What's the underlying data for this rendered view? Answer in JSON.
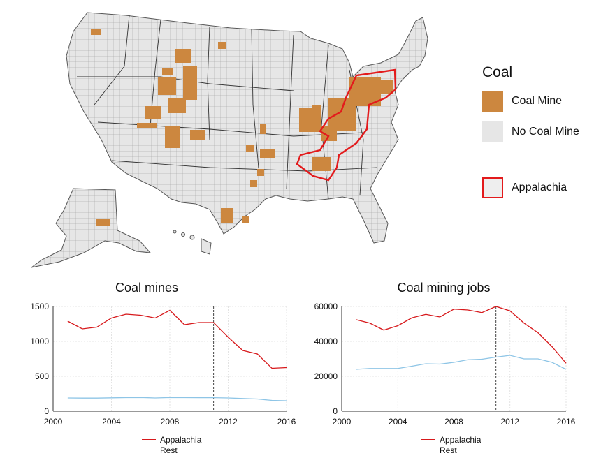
{
  "colors": {
    "coal_mine": "#cc873f",
    "no_coal_mine": "#e6e6e6",
    "appalachia_outline": "#e31a1c",
    "appalachia_line": "#d7191c",
    "rest_line": "#8ec5e6"
  },
  "map_legend": {
    "title": "Coal",
    "items": [
      {
        "label": "Coal Mine",
        "swatch": "coal-mine"
      },
      {
        "label": "No Coal Mine",
        "swatch": "no-coal-mine"
      },
      {
        "label": "Appalachia",
        "swatch": "appalachia"
      }
    ]
  },
  "chart_data": [
    {
      "type": "line",
      "title": "Coal mines",
      "x": [
        2001,
        2002,
        2003,
        2004,
        2005,
        2006,
        2007,
        2008,
        2009,
        2010,
        2011,
        2012,
        2013,
        2014,
        2015,
        2016
      ],
      "xticks": [
        2000,
        2004,
        2008,
        2012,
        2016
      ],
      "yticks": [
        0,
        500,
        1000,
        1500
      ],
      "xlim": [
        2000,
        2016
      ],
      "ylim": [
        0,
        1500
      ],
      "vline": 2011,
      "series": [
        {
          "name": "Appalachia",
          "values": [
            1290,
            1180,
            1205,
            1335,
            1390,
            1375,
            1335,
            1445,
            1240,
            1270,
            1270,
            1060,
            870,
            820,
            615,
            625
          ]
        },
        {
          "name": "Rest",
          "values": [
            190,
            188,
            188,
            192,
            195,
            197,
            190,
            196,
            195,
            194,
            194,
            190,
            182,
            175,
            155,
            150
          ]
        }
      ]
    },
    {
      "type": "line",
      "title": "Coal mining jobs",
      "x": [
        2001,
        2002,
        2003,
        2004,
        2005,
        2006,
        2007,
        2008,
        2009,
        2010,
        2011,
        2012,
        2013,
        2014,
        2015,
        2016
      ],
      "xticks": [
        2000,
        2004,
        2008,
        2012,
        2016
      ],
      "yticks": [
        0,
        20000,
        40000,
        60000
      ],
      "xlim": [
        2000,
        2016
      ],
      "ylim": [
        0,
        60000
      ],
      "vline": 2011,
      "series": [
        {
          "name": "Appalachia",
          "values": [
            52500,
            50500,
            46500,
            49000,
            53500,
            55500,
            54000,
            58500,
            58000,
            56500,
            60000,
            57500,
            50500,
            45000,
            37000,
            27500
          ]
        },
        {
          "name": "Rest",
          "values": [
            24000,
            24500,
            24500,
            24500,
            25800,
            27200,
            27000,
            28000,
            29500,
            29800,
            31000,
            32000,
            30000,
            30000,
            28000,
            24000
          ]
        }
      ]
    }
  ]
}
